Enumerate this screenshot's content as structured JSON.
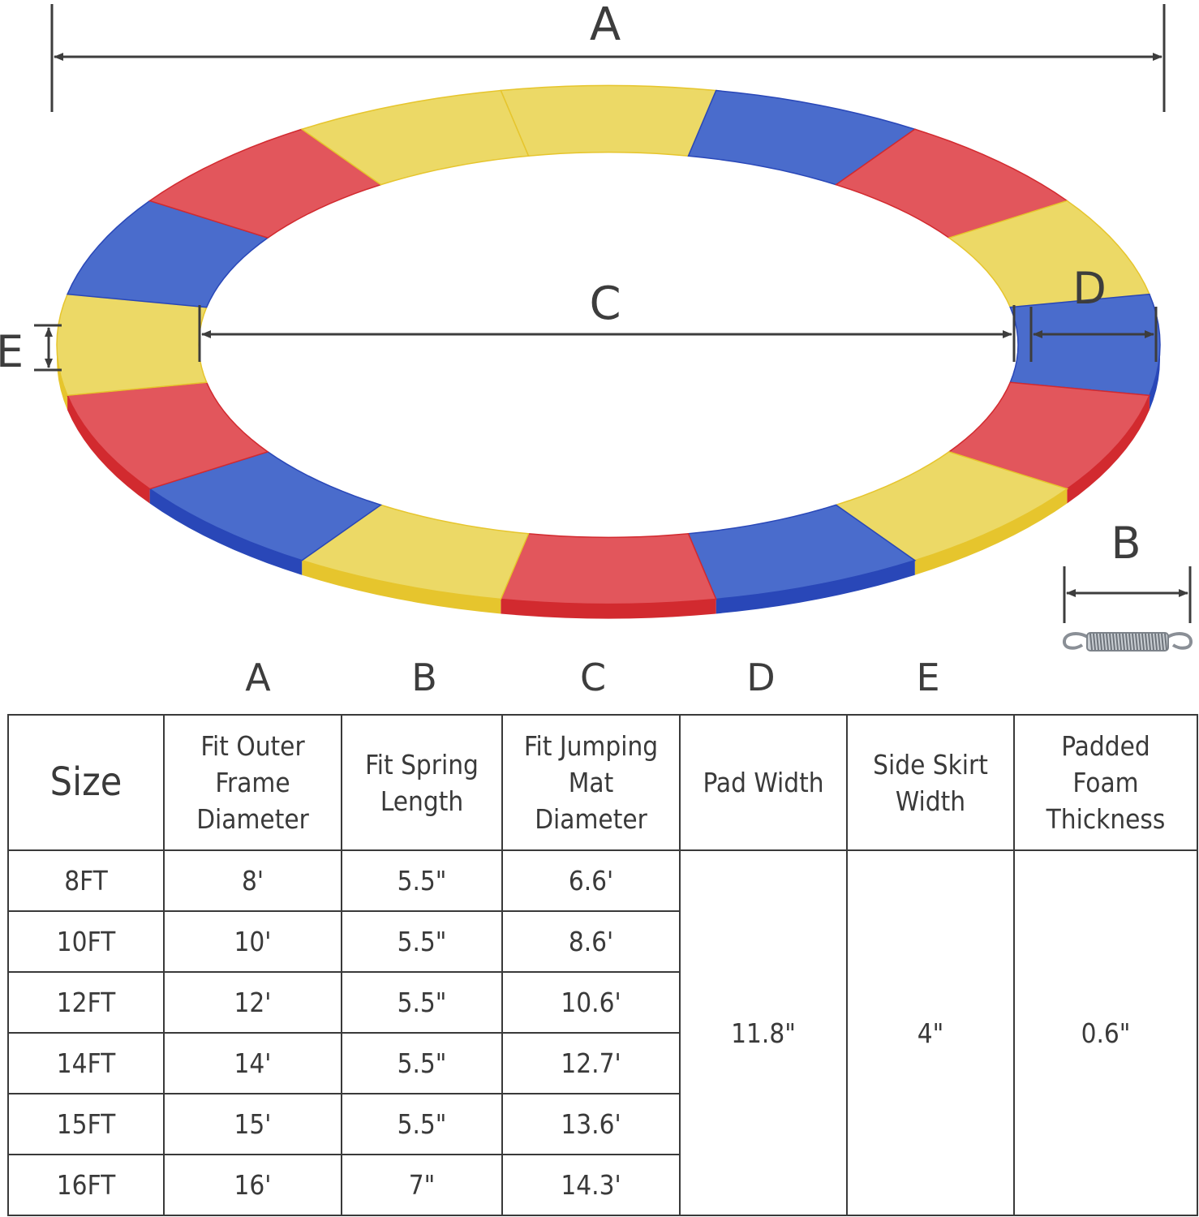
{
  "diagram": {
    "labels": {
      "a": "A",
      "b": "B",
      "c": "C",
      "d": "D",
      "e": "E"
    },
    "segment_colors": {
      "red": "#e2565c",
      "yellow": "#ecd966",
      "blue": "#4a6ccc",
      "red_edge": "#d22a2f",
      "yellow_edge": "#e6c52d",
      "blue_edge": "#2947b8"
    },
    "line_color": "#3d3d3d",
    "spring_icon": "tension-spring-icon"
  },
  "table": {
    "column_letters": [
      "A",
      "B",
      "C",
      "D",
      "E"
    ],
    "headers": {
      "size": "Size",
      "a": [
        "Fit Outer",
        "Frame",
        "Diameter"
      ],
      "b": [
        "Fit Spring",
        "Length"
      ],
      "c": [
        "Fit Jumping",
        "Mat",
        "Diameter"
      ],
      "d": [
        "Pad Width"
      ],
      "e": [
        "Side Skirt",
        "Width"
      ],
      "f": [
        "Padded",
        "Foam",
        "Thickness"
      ]
    },
    "rows": [
      {
        "size": "8FT",
        "a": "8'",
        "b": "5.5\"",
        "c": "6.6'"
      },
      {
        "size": "10FT",
        "a": "10'",
        "b": "5.5\"",
        "c": "8.6'"
      },
      {
        "size": "12FT",
        "a": "12'",
        "b": "5.5\"",
        "c": "10.6'"
      },
      {
        "size": "14FT",
        "a": "14'",
        "b": "5.5\"",
        "c": "12.7'"
      },
      {
        "size": "15FT",
        "a": "15'",
        "b": "5.5\"",
        "c": "13.6'"
      },
      {
        "size": "16FT",
        "a": "16'",
        "b": "7\"",
        "c": "14.3'"
      }
    ],
    "shared": {
      "pad_width": "11.8\"",
      "skirt_width": "4\"",
      "foam_thickness": "0.6\""
    }
  }
}
